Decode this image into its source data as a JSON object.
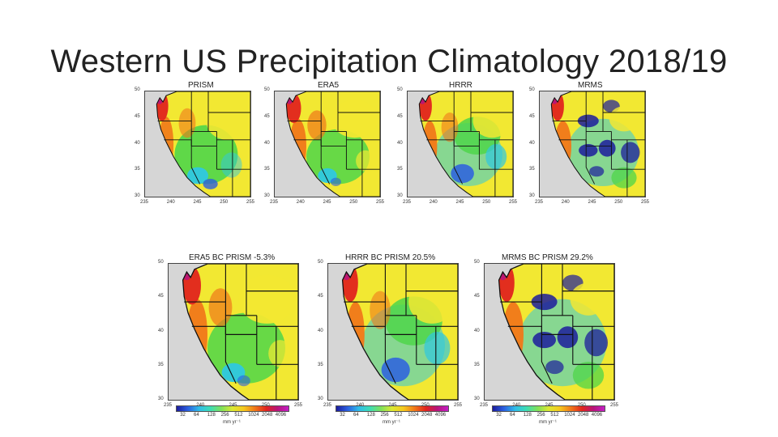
{
  "slide": {
    "title": "Western US Precipitation Climatology 2018/19"
  },
  "palette": {
    "very_wet": "#b8147a",
    "wet": "#e0241e",
    "orange": "#f0781a",
    "yellow": "#f2e832",
    "green": "#4fd64a",
    "cyan": "#2fc8e0",
    "blue": "#2b5fe0",
    "deep_blue": "#1c1c9c",
    "ocean": "#d6d6d6"
  },
  "panels": [
    {
      "label": "PRISM",
      "lat_ticks": [
        "50",
        "45",
        "40",
        "35",
        "30"
      ],
      "lon_ticks": [
        "235",
        "240",
        "245",
        "250",
        "255"
      ]
    },
    {
      "label": "ERA5",
      "lat_ticks": [
        "50",
        "45",
        "40",
        "35",
        "30"
      ],
      "lon_ticks": [
        "235",
        "240",
        "245",
        "250",
        "255"
      ]
    },
    {
      "label": "HRRR",
      "lat_ticks": [
        "50",
        "45",
        "40",
        "35",
        "30"
      ],
      "lon_ticks": [
        "235",
        "240",
        "245",
        "250",
        "255"
      ]
    },
    {
      "label": "MRMS",
      "lat_ticks": [
        "50",
        "45",
        "40",
        "35",
        "30"
      ],
      "lon_ticks": [
        "235",
        "240",
        "245",
        "250",
        "255"
      ]
    },
    {
      "label": "ERA5 BC PRISM  -5.3%",
      "lat_ticks": [
        "50",
        "45",
        "40",
        "35",
        "30"
      ],
      "lon_ticks": [
        "235",
        "240",
        "245",
        "250",
        "255"
      ]
    },
    {
      "label": "HRRR BC PRISM  20.5%",
      "lat_ticks": [
        "50",
        "45",
        "40",
        "35",
        "30"
      ],
      "lon_ticks": [
        "235",
        "240",
        "245",
        "250",
        "255"
      ]
    },
    {
      "label": "MRMS BC PRISM  29.2%",
      "lat_ticks": [
        "50",
        "45",
        "40",
        "35",
        "30"
      ],
      "lon_ticks": [
        "235",
        "240",
        "245",
        "250",
        "255"
      ]
    }
  ],
  "colorbar": {
    "ticks": [
      "32",
      "64",
      "128",
      "256",
      "512",
      "1024",
      "2048",
      "4096"
    ],
    "unit": "mm yr⁻¹"
  }
}
